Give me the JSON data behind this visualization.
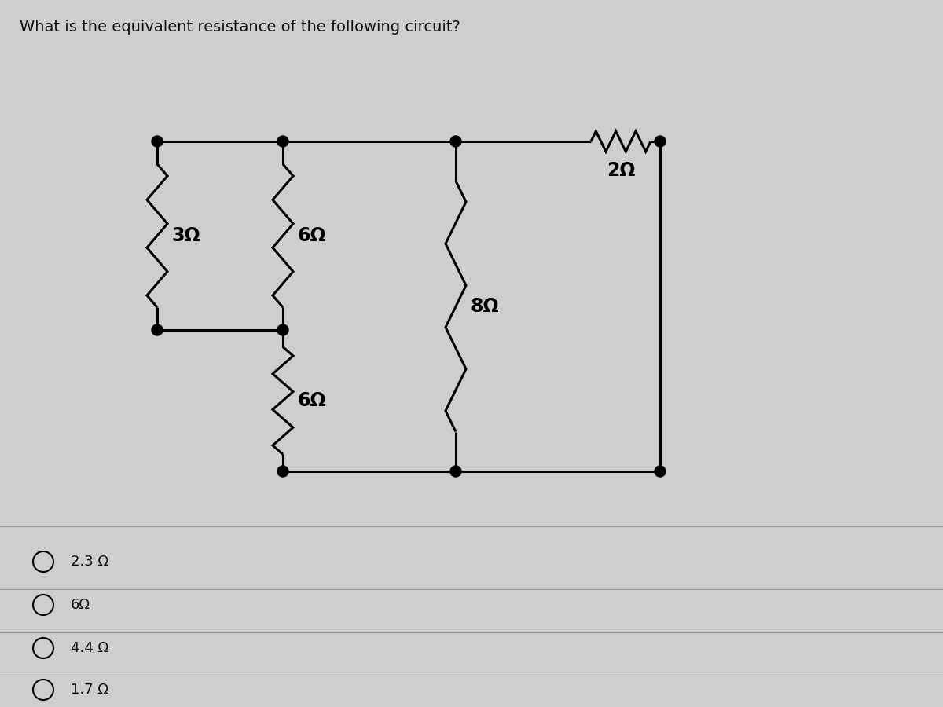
{
  "title": "What is the equivalent resistance of the following circuit?",
  "title_fontsize": 14,
  "background_color": "#cecece",
  "panel_color": "#d8d8d8",
  "line_color": "#000000",
  "line_width": 2.2,
  "resistor_labels": {
    "R3": "3Ω",
    "R6right": "6Ω",
    "R6bot": "6Ω",
    "R8": "8Ω",
    "R2": "2Ω"
  },
  "choices": [
    "2.3 Ω",
    "6Ω",
    "4.4 Ω",
    "1.7 Ω"
  ],
  "choice_fontsize": 13,
  "label_fontsize": 17
}
